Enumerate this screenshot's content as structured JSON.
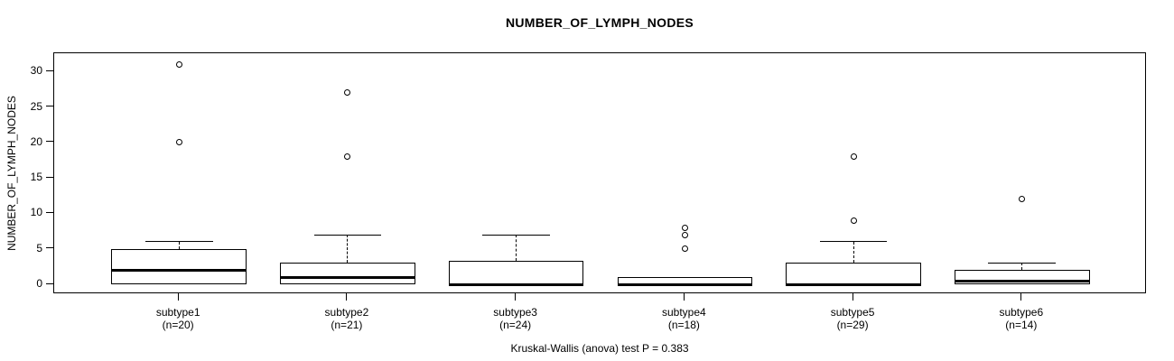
{
  "colors": {
    "foreground": "#000000",
    "background": "#ffffff"
  },
  "chart_data": {
    "type": "boxplot",
    "title": "NUMBER_OF_LYMPH_NODES",
    "ylabel": "NUMBER_OF_LYMPH_NODES",
    "xlabel": "",
    "caption": "Kruskal-Wallis (anova) test P = 0.383",
    "grid": false,
    "legend": false,
    "y_ticks": [
      0,
      5,
      10,
      15,
      20,
      25,
      30
    ],
    "ylim": [
      -1.4,
      32.6
    ],
    "groups": [
      {
        "label": "subtype1",
        "n_label": "(n=20)",
        "n": 20,
        "q1": 0,
        "median": 2,
        "q3": 5,
        "whisker_low": 0,
        "whisker_high": 6,
        "outliers": [
          20,
          31
        ]
      },
      {
        "label": "subtype2",
        "n_label": "(n=21)",
        "n": 21,
        "q1": 0,
        "median": 1,
        "q3": 3,
        "whisker_low": 0,
        "whisker_high": 7,
        "outliers": [
          18,
          27
        ]
      },
      {
        "label": "subtype3",
        "n_label": "(n=24)",
        "n": 24,
        "q1": 0,
        "median": 0,
        "q3": 3.25,
        "whisker_low": 0,
        "whisker_high": 7,
        "outliers": []
      },
      {
        "label": "subtype4",
        "n_label": "(n=18)",
        "n": 18,
        "q1": 0,
        "median": 0,
        "q3": 1,
        "whisker_low": 0,
        "whisker_high": 1,
        "outliers": [
          5,
          7,
          8
        ]
      },
      {
        "label": "subtype5",
        "n_label": "(n=29)",
        "n": 29,
        "q1": 0,
        "median": 0,
        "q3": 3,
        "whisker_low": 0,
        "whisker_high": 6,
        "outliers": [
          9,
          18
        ]
      },
      {
        "label": "subtype6",
        "n_label": "(n=14)",
        "n": 14,
        "q1": 0,
        "median": 0.5,
        "q3": 2,
        "whisker_low": 0,
        "whisker_high": 3,
        "outliers": [
          12
        ]
      }
    ]
  }
}
